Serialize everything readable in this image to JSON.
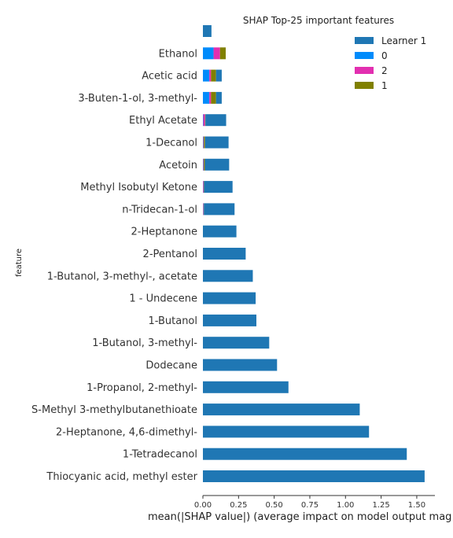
{
  "chart_data": {
    "type": "bar",
    "orientation": "horizontal",
    "stacked": true,
    "title": "SHAP Top-25 important features",
    "xlabel": "mean(|SHAP value|) (average impact on model output mag",
    "ylabel": "feature",
    "xlim": [
      0,
      1.6
    ],
    "xticks": [
      "0.00",
      "0.25",
      "0.50",
      "0.75",
      "1.00",
      "1.25",
      "1.50"
    ],
    "grid": false,
    "legend_position": "top-right",
    "categories": [
      "",
      "Ethanol",
      "Acetic acid",
      "3-Buten-1-ol, 3-methyl-",
      "Ethyl Acetate",
      "1-Decanol",
      "Acetoin",
      "Methyl Isobutyl Ketone",
      "n-Tridecan-1-ol",
      "2-Heptanone",
      "2-Pentanol",
      "1-Butanol, 3-methyl-, acetate",
      "1 - Undecene",
      "1-Butanol",
      "1-Butanol, 3-methyl-",
      "Dodecane",
      "1-Propanol, 2-methyl-",
      "S-Methyl 3-methylbutanethioate",
      "2-Heptanone, 4,6-dimethyl-",
      "1-Tetradecanol",
      "Thiocyanic acid, methyl ester"
    ],
    "series": [
      {
        "name": "0",
        "color": "#008bfb",
        "values": [
          0,
          0.075,
          0.045,
          0.045,
          0.003,
          0.003,
          0.003,
          0.002,
          0.002,
          0,
          0,
          0,
          0,
          0,
          0,
          0,
          0,
          0,
          0,
          0,
          0
        ]
      },
      {
        "name": "2",
        "color": "#e22fb0",
        "values": [
          0,
          0.045,
          0.012,
          0.012,
          0.012,
          0.004,
          0.004,
          0.004,
          0.003,
          0,
          0,
          0,
          0,
          0,
          0,
          0,
          0,
          0,
          0,
          0,
          0
        ]
      },
      {
        "name": "1",
        "color": "#808000",
        "values": [
          0,
          0.04,
          0.035,
          0.035,
          0.003,
          0.008,
          0.007,
          0.002,
          0.002,
          0,
          0,
          0,
          0,
          0,
          0,
          0,
          0,
          0,
          0,
          0,
          0
        ]
      },
      {
        "name": "Learner 1",
        "color": "#1f77b4",
        "values": [
          0.06,
          0,
          0.04,
          0.04,
          0.145,
          0.165,
          0.17,
          0.2,
          0.215,
          0.235,
          0.3,
          0.35,
          0.37,
          0.375,
          0.465,
          0.52,
          0.6,
          1.1,
          1.165,
          1.43,
          1.555
        ]
      }
    ],
    "legend_order": [
      "Learner 1",
      "0",
      "2",
      "1"
    ]
  }
}
